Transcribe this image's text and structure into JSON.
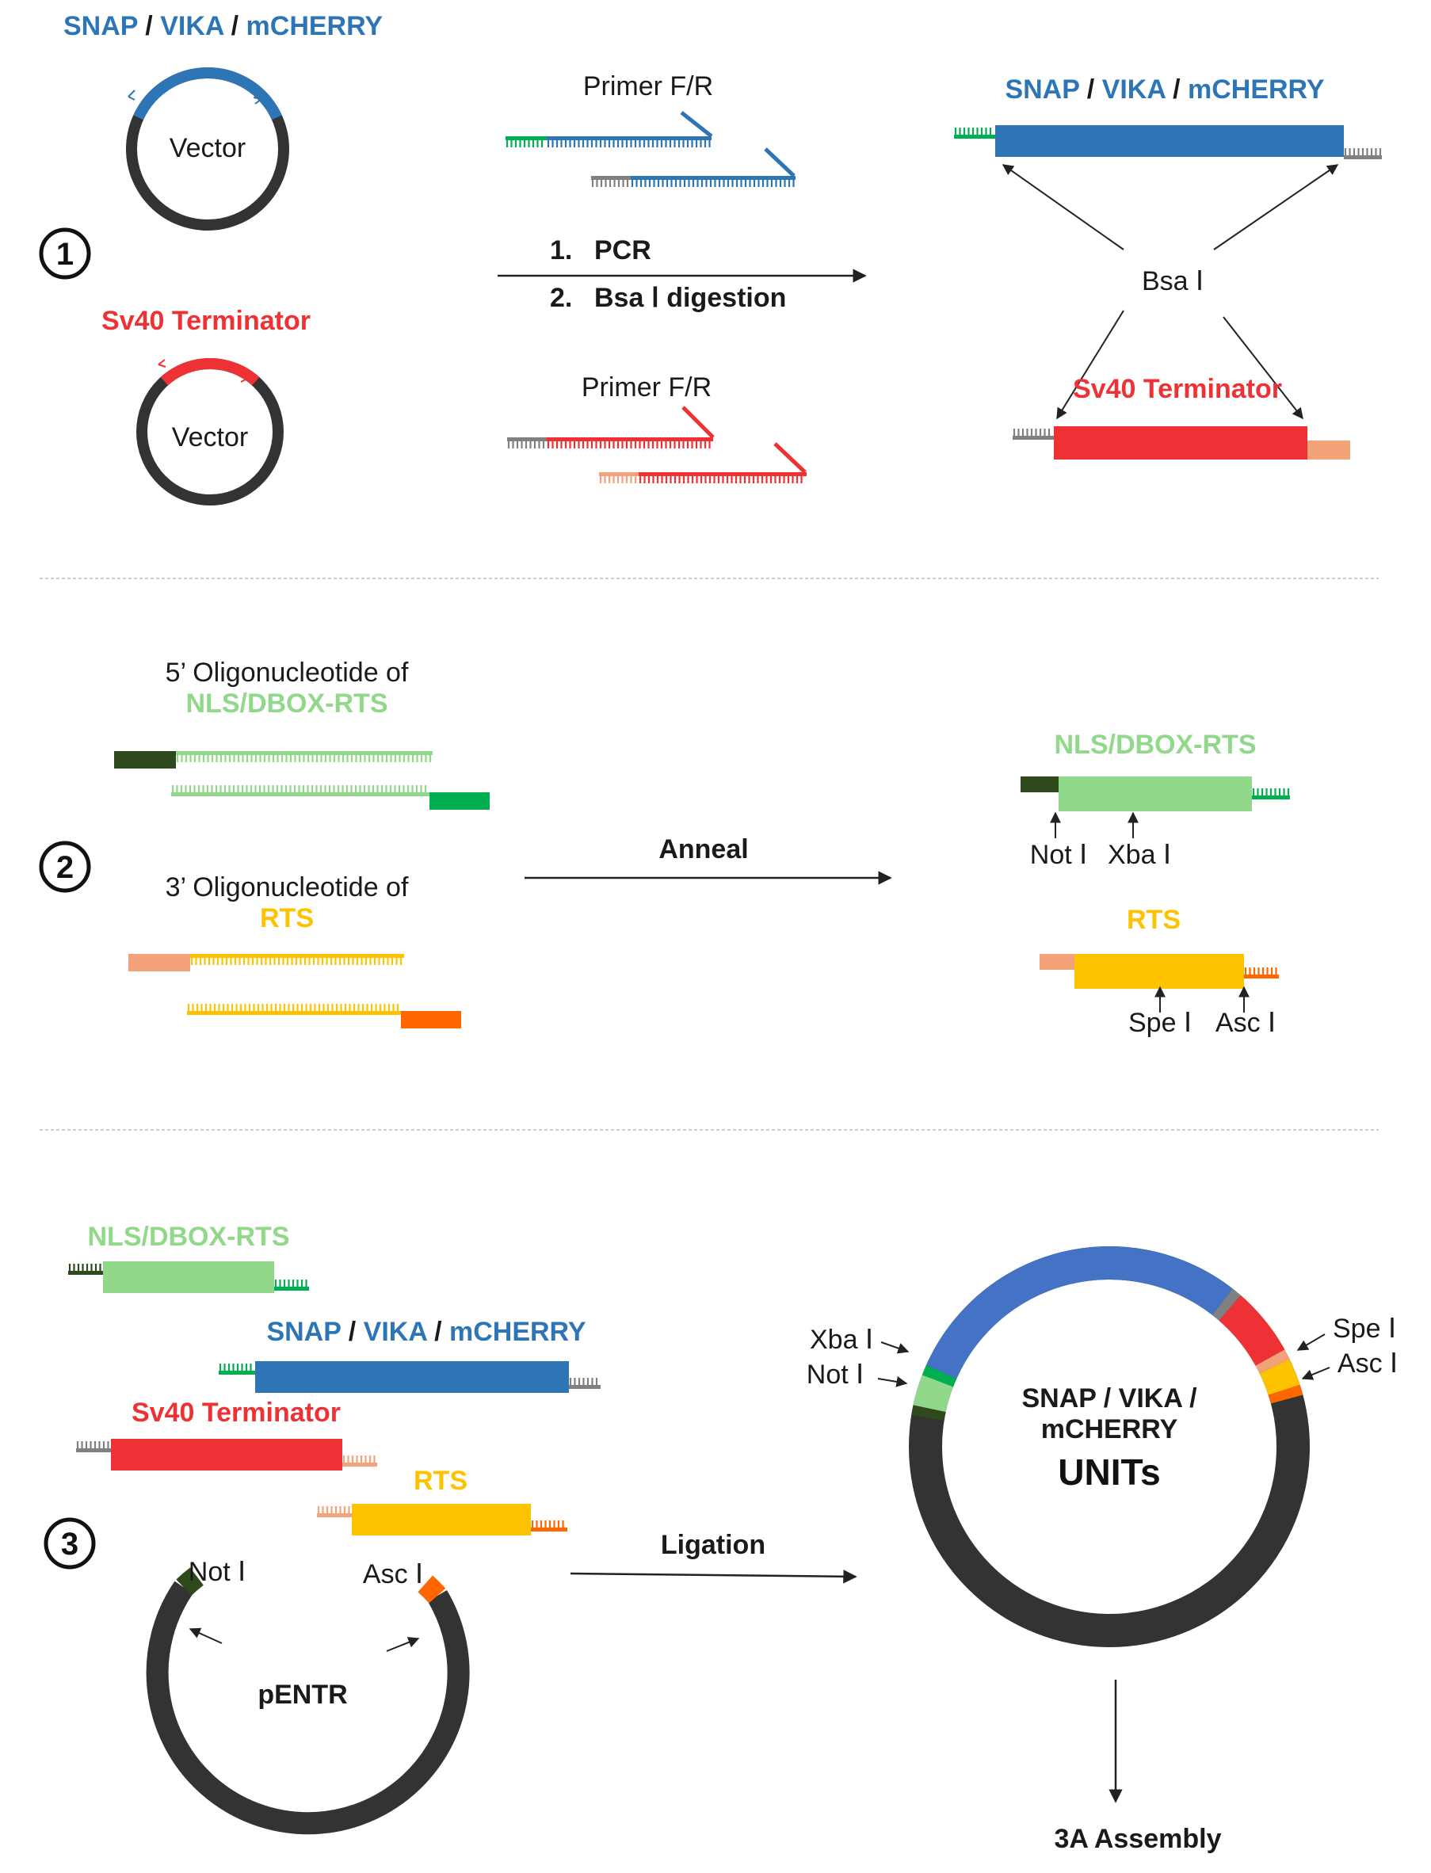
{
  "colors": {
    "blue": "#2e75b6",
    "blue_plasmid": "#4472c4",
    "red": "#ee3134",
    "green": "#00b050",
    "light_green": "#92d88b",
    "dark_green": "#2e4a1c",
    "gray": "#808080",
    "salmon": "#f4a27a",
    "yellow": "#fdc200",
    "orange": "#ff6600",
    "plasmid_black": "#333333",
    "arrow": "#222222",
    "separator": "#bbbbbb"
  },
  "title_parts": {
    "p1": "SNAP",
    "sep": " / ",
    "p2": "VIKA",
    "p3": "mCHERRY"
  },
  "section1": {
    "step_number": "1",
    "vector_label": "Vector",
    "sv40_label": "Sv40 Terminator",
    "primer_label": "Primer F/R",
    "step1": "1.",
    "step1_label": "PCR",
    "step2": "2.",
    "step2_label": "Bsa Ⅰ  digestion",
    "bsa_label": "Bsa Ⅰ"
  },
  "section2": {
    "step_number": "2",
    "oligo5_line1": "5’ Oligonucleotide of",
    "oligo5_line2": "NLS/DBOX-RTS",
    "oligo3_line1": "3’ Oligonucleotide of",
    "oligo3_line2": "RTS",
    "anneal_label": "Anneal",
    "nls_label": "NLS/DBOX-RTS",
    "rts_label": "RTS",
    "not_label": "Not Ⅰ",
    "xba_label": "Xba Ⅰ",
    "spe_label": "Spe Ⅰ",
    "asc_label": "Asc Ⅰ"
  },
  "section3": {
    "step_number": "3",
    "nls_label": "NLS/DBOX-RTS",
    "sv40_label": "Sv40 Terminator",
    "rts_label": "RTS",
    "not_label": "Not Ⅰ",
    "asc_label": "Asc Ⅰ",
    "pentr_label": "pENTR",
    "ligation_label": "Ligation",
    "xba_label": "Xba Ⅰ",
    "spe_label": "Spe Ⅰ",
    "units_line1": "SNAP / VIKA /",
    "units_line2": "mCHERRY",
    "units_line3": "UNITs",
    "assembly_label": "3A  Assembly"
  }
}
